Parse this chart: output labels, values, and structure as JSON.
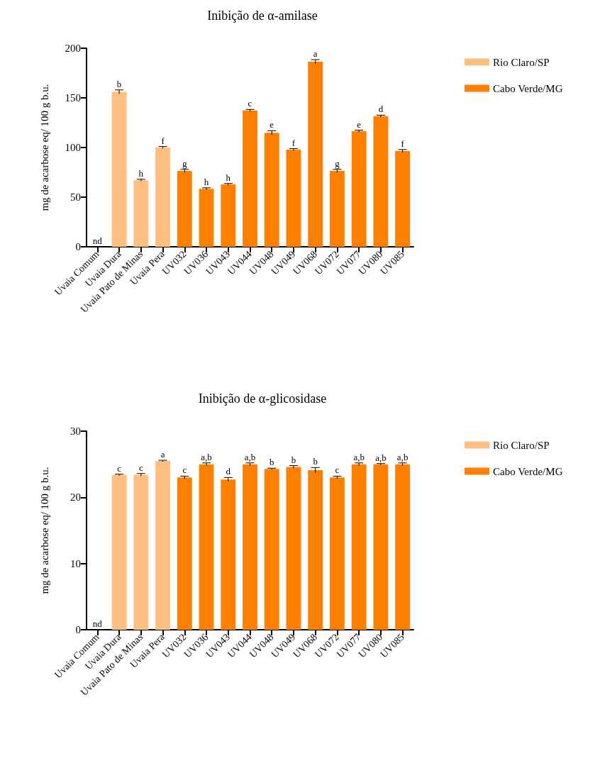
{
  "chart_data": [
    {
      "type": "bar",
      "title": "Inibição de α-amilase",
      "ylabel": "mg de acarbose eq/ 100 g b.u.",
      "categories": [
        "Uvaia Comum",
        "Uvaia Dura",
        "Uvaia Pato de Minas",
        "Uvaia Pera",
        "UV032",
        "UV036",
        "UV043",
        "UV044",
        "UV048",
        "UV049",
        "UV068",
        "UV072",
        "UV077",
        "UV080",
        "UV085"
      ],
      "series": [
        {
          "name": "Rio Claro/SP",
          "color": "#ffbf80",
          "values": [
            null,
            156,
            67,
            100,
            null,
            null,
            null,
            null,
            null,
            null,
            null,
            null,
            null,
            null,
            null
          ],
          "errors": [
            null,
            2,
            1,
            1,
            null,
            null,
            null,
            null,
            null,
            null,
            null,
            null,
            null,
            null,
            null
          ]
        },
        {
          "name": "Cabo Verde/MG",
          "color": "#ff8000",
          "values": [
            null,
            null,
            null,
            null,
            76.5,
            58.4,
            62.8,
            137.4,
            114.9,
            97.9,
            186.5,
            76.5,
            116.5,
            131.6,
            96.5
          ],
          "errors": [
            null,
            null,
            null,
            null,
            1.5,
            1,
            1,
            1,
            2,
            1,
            2,
            1.5,
            1,
            1,
            1.5
          ]
        }
      ],
      "ylim": [
        0,
        200
      ],
      "yticks": [
        0,
        50,
        100,
        150,
        200
      ],
      "grid": false,
      "legend": "right",
      "annotations": [
        "nd",
        {
          "text": "b",
          "x": "Uvaia Dura",
          "y": 158
        },
        {
          "text": "h",
          "x": "Uvaia Pato de Minas",
          "y": 68
        },
        {
          "text": "f",
          "x": "Uvaia Pera",
          "y": 101
        },
        {
          "text": "g",
          "x": "UV032",
          "y": 78
        },
        {
          "text": "h",
          "x": "UV036",
          "y": 59.4
        },
        {
          "text": "h",
          "x": "UV043",
          "y": 63.8
        },
        {
          "text": "c",
          "x": "UV044",
          "y": 138.4
        },
        {
          "text": "e",
          "x": "UV048",
          "y": 116.9
        },
        {
          "text": "f",
          "x": "UV049",
          "y": 98.9
        },
        {
          "text": "a",
          "x": "UV068",
          "y": 188.5
        },
        {
          "text": "g",
          "x": "UV072",
          "y": 78
        },
        {
          "text": "e",
          "x": "UV077",
          "y": 117.5
        },
        {
          "text": "d",
          "x": "UV080",
          "y": 132.6
        },
        {
          "text": "f",
          "x": "UV085",
          "y": 98
        }
      ]
    },
    {
      "type": "bar",
      "title": "Inibição de α-glicosidase",
      "ylabel": "mg de acarbose eq/ 100 g b.u.",
      "categories": [
        "Uvaia Comum",
        "Uvaia Dura",
        "Uvaia Pato de Minas",
        "Uvaia Pera",
        "UV032",
        "UV036",
        "UV043",
        "UV044",
        "UV048",
        "UV049",
        "UV068",
        "UV072",
        "UV077",
        "UV080",
        "UV085"
      ],
      "series": [
        {
          "name": "Rio Claro/SP",
          "color": "#ffbf80",
          "values": [
            null,
            23.4,
            23.4,
            25.5,
            null,
            null,
            null,
            null,
            null,
            null,
            null,
            null,
            null,
            null,
            null
          ],
          "errors": [
            null,
            0.1,
            0.2,
            0.1,
            null,
            null,
            null,
            null,
            null,
            null,
            null,
            null,
            null,
            null,
            null
          ]
        },
        {
          "name": "Cabo Verde/MG",
          "color": "#ff8000",
          "values": [
            null,
            null,
            null,
            null,
            23.0,
            25.0,
            22.7,
            25.0,
            24.3,
            24.6,
            24.1,
            23.0,
            25.0,
            25.0,
            25.0
          ],
          "errors": [
            null,
            null,
            null,
            null,
            0.2,
            0.2,
            0.3,
            0.2,
            0.1,
            0.2,
            0.4,
            0.2,
            0.2,
            0.1,
            0.2
          ]
        }
      ],
      "ylim": [
        0,
        30
      ],
      "yticks": [
        0,
        10,
        20,
        30
      ],
      "grid": false,
      "legend": "right",
      "annotations": [
        "nd",
        {
          "text": "c",
          "x": "Uvaia Dura",
          "y": 23.5
        },
        {
          "text": "c",
          "x": "Uvaia Pato de Minas",
          "y": 23.6
        },
        {
          "text": "a",
          "x": "Uvaia Pera",
          "y": 25.6
        },
        {
          "text": "c",
          "x": "UV032",
          "y": 23.2
        },
        {
          "text": "a,b",
          "x": "UV036",
          "y": 25.2
        },
        {
          "text": "d",
          "x": "UV043",
          "y": 23.0
        },
        {
          "text": "a,b",
          "x": "UV044",
          "y": 25.2
        },
        {
          "text": "b",
          "x": "UV048",
          "y": 24.4
        },
        {
          "text": "b",
          "x": "UV049",
          "y": 24.8
        },
        {
          "text": "b",
          "x": "UV068",
          "y": 24.5
        },
        {
          "text": "c",
          "x": "UV072",
          "y": 23.2
        },
        {
          "text": "a,b",
          "x": "UV077",
          "y": 25.2
        },
        {
          "text": "a,b",
          "x": "UV080",
          "y": 25.1
        },
        {
          "text": "a,b",
          "x": "UV085",
          "y": 25.2
        }
      ]
    }
  ]
}
